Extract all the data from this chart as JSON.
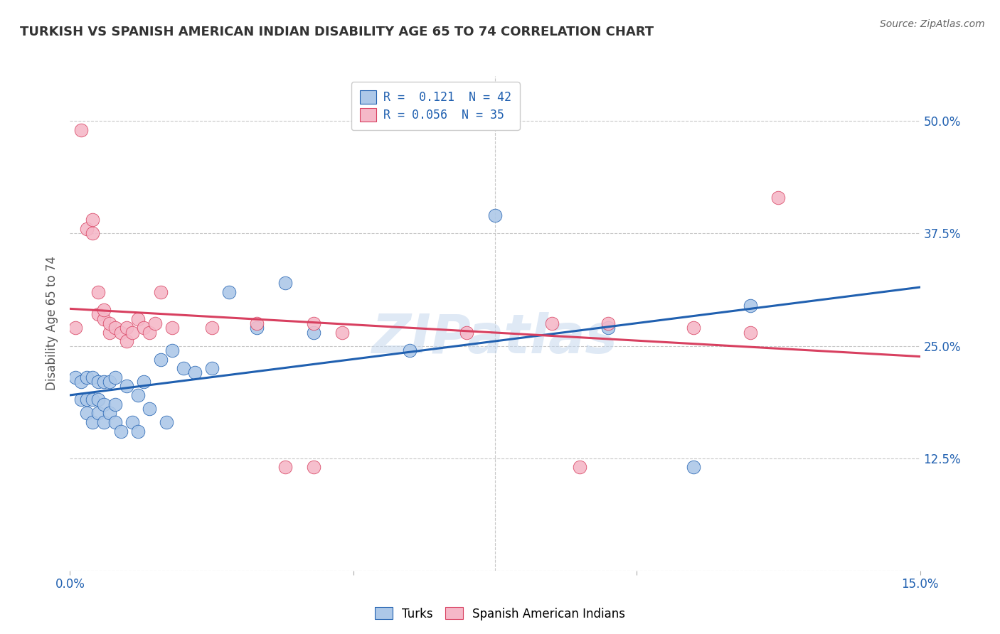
{
  "title": "TURKISH VS SPANISH AMERICAN INDIAN DISABILITY AGE 65 TO 74 CORRELATION CHART",
  "source": "Source: ZipAtlas.com",
  "ylabel": "Disability Age 65 to 74",
  "xlim": [
    0.0,
    0.15
  ],
  "ylim": [
    0.0,
    0.55
  ],
  "yticks": [
    0.0,
    0.125,
    0.25,
    0.375,
    0.5
  ],
  "yticklabels": [
    "",
    "12.5%",
    "25.0%",
    "37.5%",
    "50.0%"
  ],
  "xticks": [
    0.0,
    0.05,
    0.1,
    0.15
  ],
  "xticklabels": [
    "0.0%",
    "",
    "",
    "15.0%"
  ],
  "legend_r1": "R =  0.121  N = 42",
  "legend_r2": "R = 0.056  N = 35",
  "turks_color": "#adc8e8",
  "spanish_color": "#f5b8c8",
  "line_blue": "#2060b0",
  "line_pink": "#d84060",
  "turks_x": [
    0.001,
    0.002,
    0.002,
    0.003,
    0.003,
    0.003,
    0.004,
    0.004,
    0.004,
    0.005,
    0.005,
    0.005,
    0.006,
    0.006,
    0.006,
    0.007,
    0.007,
    0.008,
    0.008,
    0.008,
    0.009,
    0.01,
    0.011,
    0.012,
    0.012,
    0.013,
    0.014,
    0.016,
    0.017,
    0.018,
    0.02,
    0.022,
    0.025,
    0.028,
    0.033,
    0.038,
    0.043,
    0.06,
    0.075,
    0.095,
    0.11,
    0.12
  ],
  "turks_y": [
    0.215,
    0.19,
    0.21,
    0.175,
    0.19,
    0.215,
    0.165,
    0.19,
    0.215,
    0.175,
    0.19,
    0.21,
    0.165,
    0.185,
    0.21,
    0.175,
    0.21,
    0.165,
    0.185,
    0.215,
    0.155,
    0.205,
    0.165,
    0.155,
    0.195,
    0.21,
    0.18,
    0.235,
    0.165,
    0.245,
    0.225,
    0.22,
    0.225,
    0.31,
    0.27,
    0.32,
    0.265,
    0.245,
    0.395,
    0.27,
    0.115,
    0.295
  ],
  "spanish_x": [
    0.001,
    0.002,
    0.003,
    0.004,
    0.004,
    0.005,
    0.005,
    0.006,
    0.006,
    0.007,
    0.007,
    0.008,
    0.009,
    0.01,
    0.01,
    0.011,
    0.012,
    0.013,
    0.014,
    0.015,
    0.016,
    0.018,
    0.025,
    0.033,
    0.038,
    0.043,
    0.043,
    0.048,
    0.07,
    0.085,
    0.09,
    0.095,
    0.11,
    0.12,
    0.125
  ],
  "spanish_y": [
    0.27,
    0.49,
    0.38,
    0.375,
    0.39,
    0.31,
    0.285,
    0.28,
    0.29,
    0.265,
    0.275,
    0.27,
    0.265,
    0.27,
    0.255,
    0.265,
    0.28,
    0.27,
    0.265,
    0.275,
    0.31,
    0.27,
    0.27,
    0.275,
    0.115,
    0.115,
    0.275,
    0.265,
    0.265,
    0.275,
    0.115,
    0.275,
    0.27,
    0.265,
    0.415
  ],
  "watermark": "ZIPatlas",
  "background_color": "#ffffff",
  "grid_color": "#c8c8c8"
}
